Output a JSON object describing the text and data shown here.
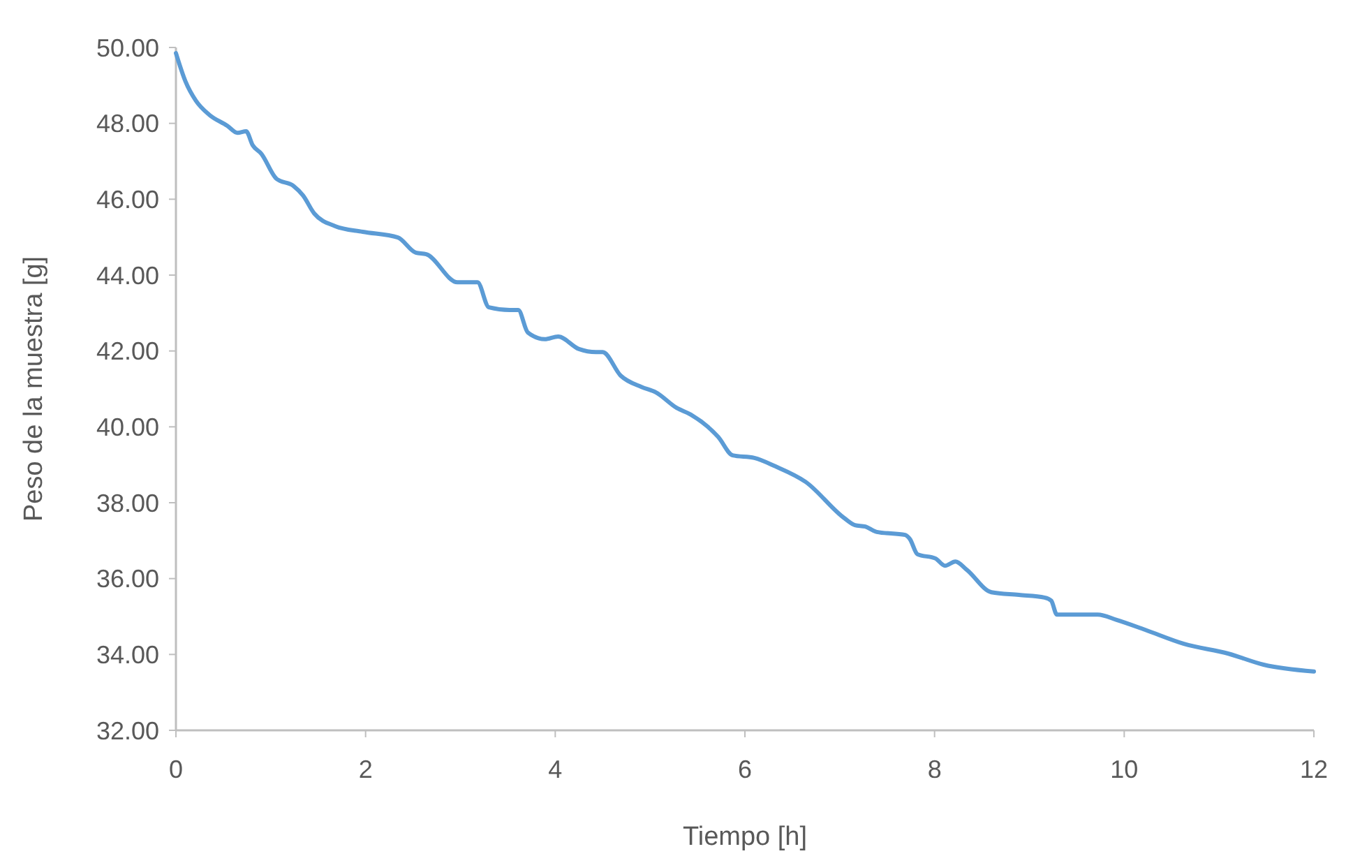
{
  "chart_data": {
    "type": "line",
    "xlabel": "Tiempo [h]",
    "ylabel": "Peso de la muestra [g]",
    "xlim": [
      0,
      12
    ],
    "xticks": [
      0,
      2,
      4,
      6,
      8,
      10,
      12
    ],
    "ylim": [
      32,
      50
    ],
    "yticks": [
      {
        "value": 32,
        "label": "32.00"
      },
      {
        "value": 34,
        "label": "34.00"
      },
      {
        "value": 36,
        "label": "36.00"
      },
      {
        "value": 38,
        "label": "38.00"
      },
      {
        "value": 40,
        "label": "40.00"
      },
      {
        "value": 42,
        "label": "42.00"
      },
      {
        "value": 44,
        "label": "44.00"
      },
      {
        "value": 46,
        "label": "46.00"
      },
      {
        "value": 48,
        "label": "48.00"
      },
      {
        "value": 50,
        "label": "50.00"
      }
    ],
    "grid": false,
    "marker": "none",
    "line_style": "solid",
    "series": [
      {
        "color": "#5b9bd5",
        "x": [
          0,
          0.1,
          0.21,
          0.35,
          0.54,
          0.65,
          0.74,
          0.81,
          0.9,
          1.06,
          1.24,
          1.34,
          1.46,
          1.68,
          1.97,
          2.34,
          2.53,
          2.64,
          2.97,
          3.18,
          3.3,
          3.52,
          3.61,
          3.71,
          3.89,
          4.03,
          4.25,
          4.43,
          4.5,
          4.69,
          4.91,
          5.06,
          5.28,
          5.43,
          5.72,
          5.87,
          6.1,
          6.32,
          6.64,
          7.05,
          7.16,
          7.27,
          7.39,
          7.69,
          7.74,
          7.82,
          8.01,
          8.11,
          8.22,
          8.34,
          8.6,
          8.89,
          9.16,
          9.23,
          9.29,
          9.48,
          9.72,
          9.92,
          10.22,
          10.63,
          11.1,
          11.47,
          12
        ],
        "values": [
          49.85,
          49.11,
          48.6,
          48.23,
          47.94,
          47.75,
          47.79,
          47.42,
          47.2,
          46.54,
          46.35,
          46.1,
          45.62,
          45.29,
          45.14,
          44.99,
          44.59,
          44.55,
          43.81,
          43.81,
          43.15,
          43.08,
          43.08,
          42.49,
          42.31,
          42.38,
          42.05,
          41.97,
          41.97,
          41.35,
          41.05,
          40.91,
          40.5,
          40.32,
          39.73,
          39.25,
          39.18,
          38.96,
          38.55,
          37.59,
          37.41,
          37.37,
          37.23,
          37.15,
          37.04,
          36.64,
          36.53,
          36.34,
          36.45,
          36.23,
          35.64,
          35.57,
          35.5,
          35.42,
          35.05,
          35.05,
          35.05,
          34.91,
          34.65,
          34.28,
          34.02,
          33.73,
          33.55
        ]
      }
    ]
  }
}
